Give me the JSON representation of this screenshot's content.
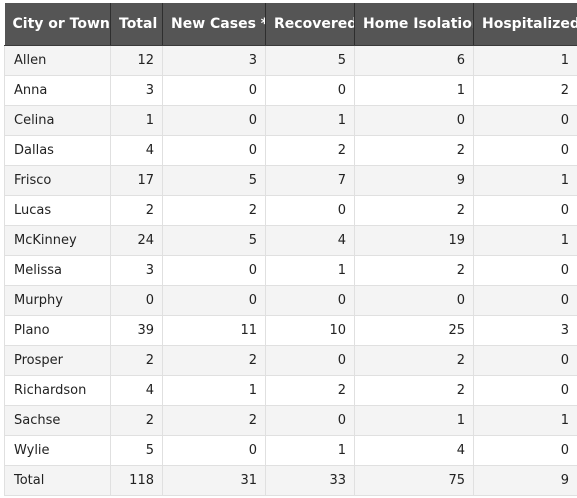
{
  "table": {
    "headers": [
      "City or Town",
      "Total",
      "New Cases *",
      "Recovered",
      "Home Isolation",
      "Hospitalized"
    ],
    "rows": [
      [
        "Allen",
        "12",
        "3",
        "5",
        "6",
        "1"
      ],
      [
        "Anna",
        "3",
        "0",
        "0",
        "1",
        "2"
      ],
      [
        "Celina",
        "1",
        "0",
        "1",
        "0",
        "0"
      ],
      [
        "Dallas",
        "4",
        "0",
        "2",
        "2",
        "0"
      ],
      [
        "Frisco",
        "17",
        "5",
        "7",
        "9",
        "1"
      ],
      [
        "Lucas",
        "2",
        "2",
        "0",
        "2",
        "0"
      ],
      [
        "McKinney",
        "24",
        "5",
        "4",
        "19",
        "1"
      ],
      [
        "Melissa",
        "3",
        "0",
        "1",
        "2",
        "0"
      ],
      [
        "Murphy",
        "0",
        "0",
        "0",
        "0",
        "0"
      ],
      [
        "Plano",
        "39",
        "11",
        "10",
        "25",
        "3"
      ],
      [
        "Prosper",
        "2",
        "2",
        "0",
        "2",
        "0"
      ],
      [
        "Richardson",
        "4",
        "1",
        "2",
        "2",
        "0"
      ],
      [
        "Sachse",
        "2",
        "2",
        "0",
        "1",
        "1"
      ],
      [
        "Wylie",
        "5",
        "0",
        "1",
        "4",
        "0"
      ],
      [
        "Total",
        "118",
        "31",
        "33",
        "75",
        "9"
      ]
    ]
  },
  "colors": {
    "header_bg": "#555555",
    "header_text": "#ffffff",
    "row_alt_bg": "#f4f4f4",
    "row_bg": "#ffffff",
    "border": "#e0e0e0"
  }
}
